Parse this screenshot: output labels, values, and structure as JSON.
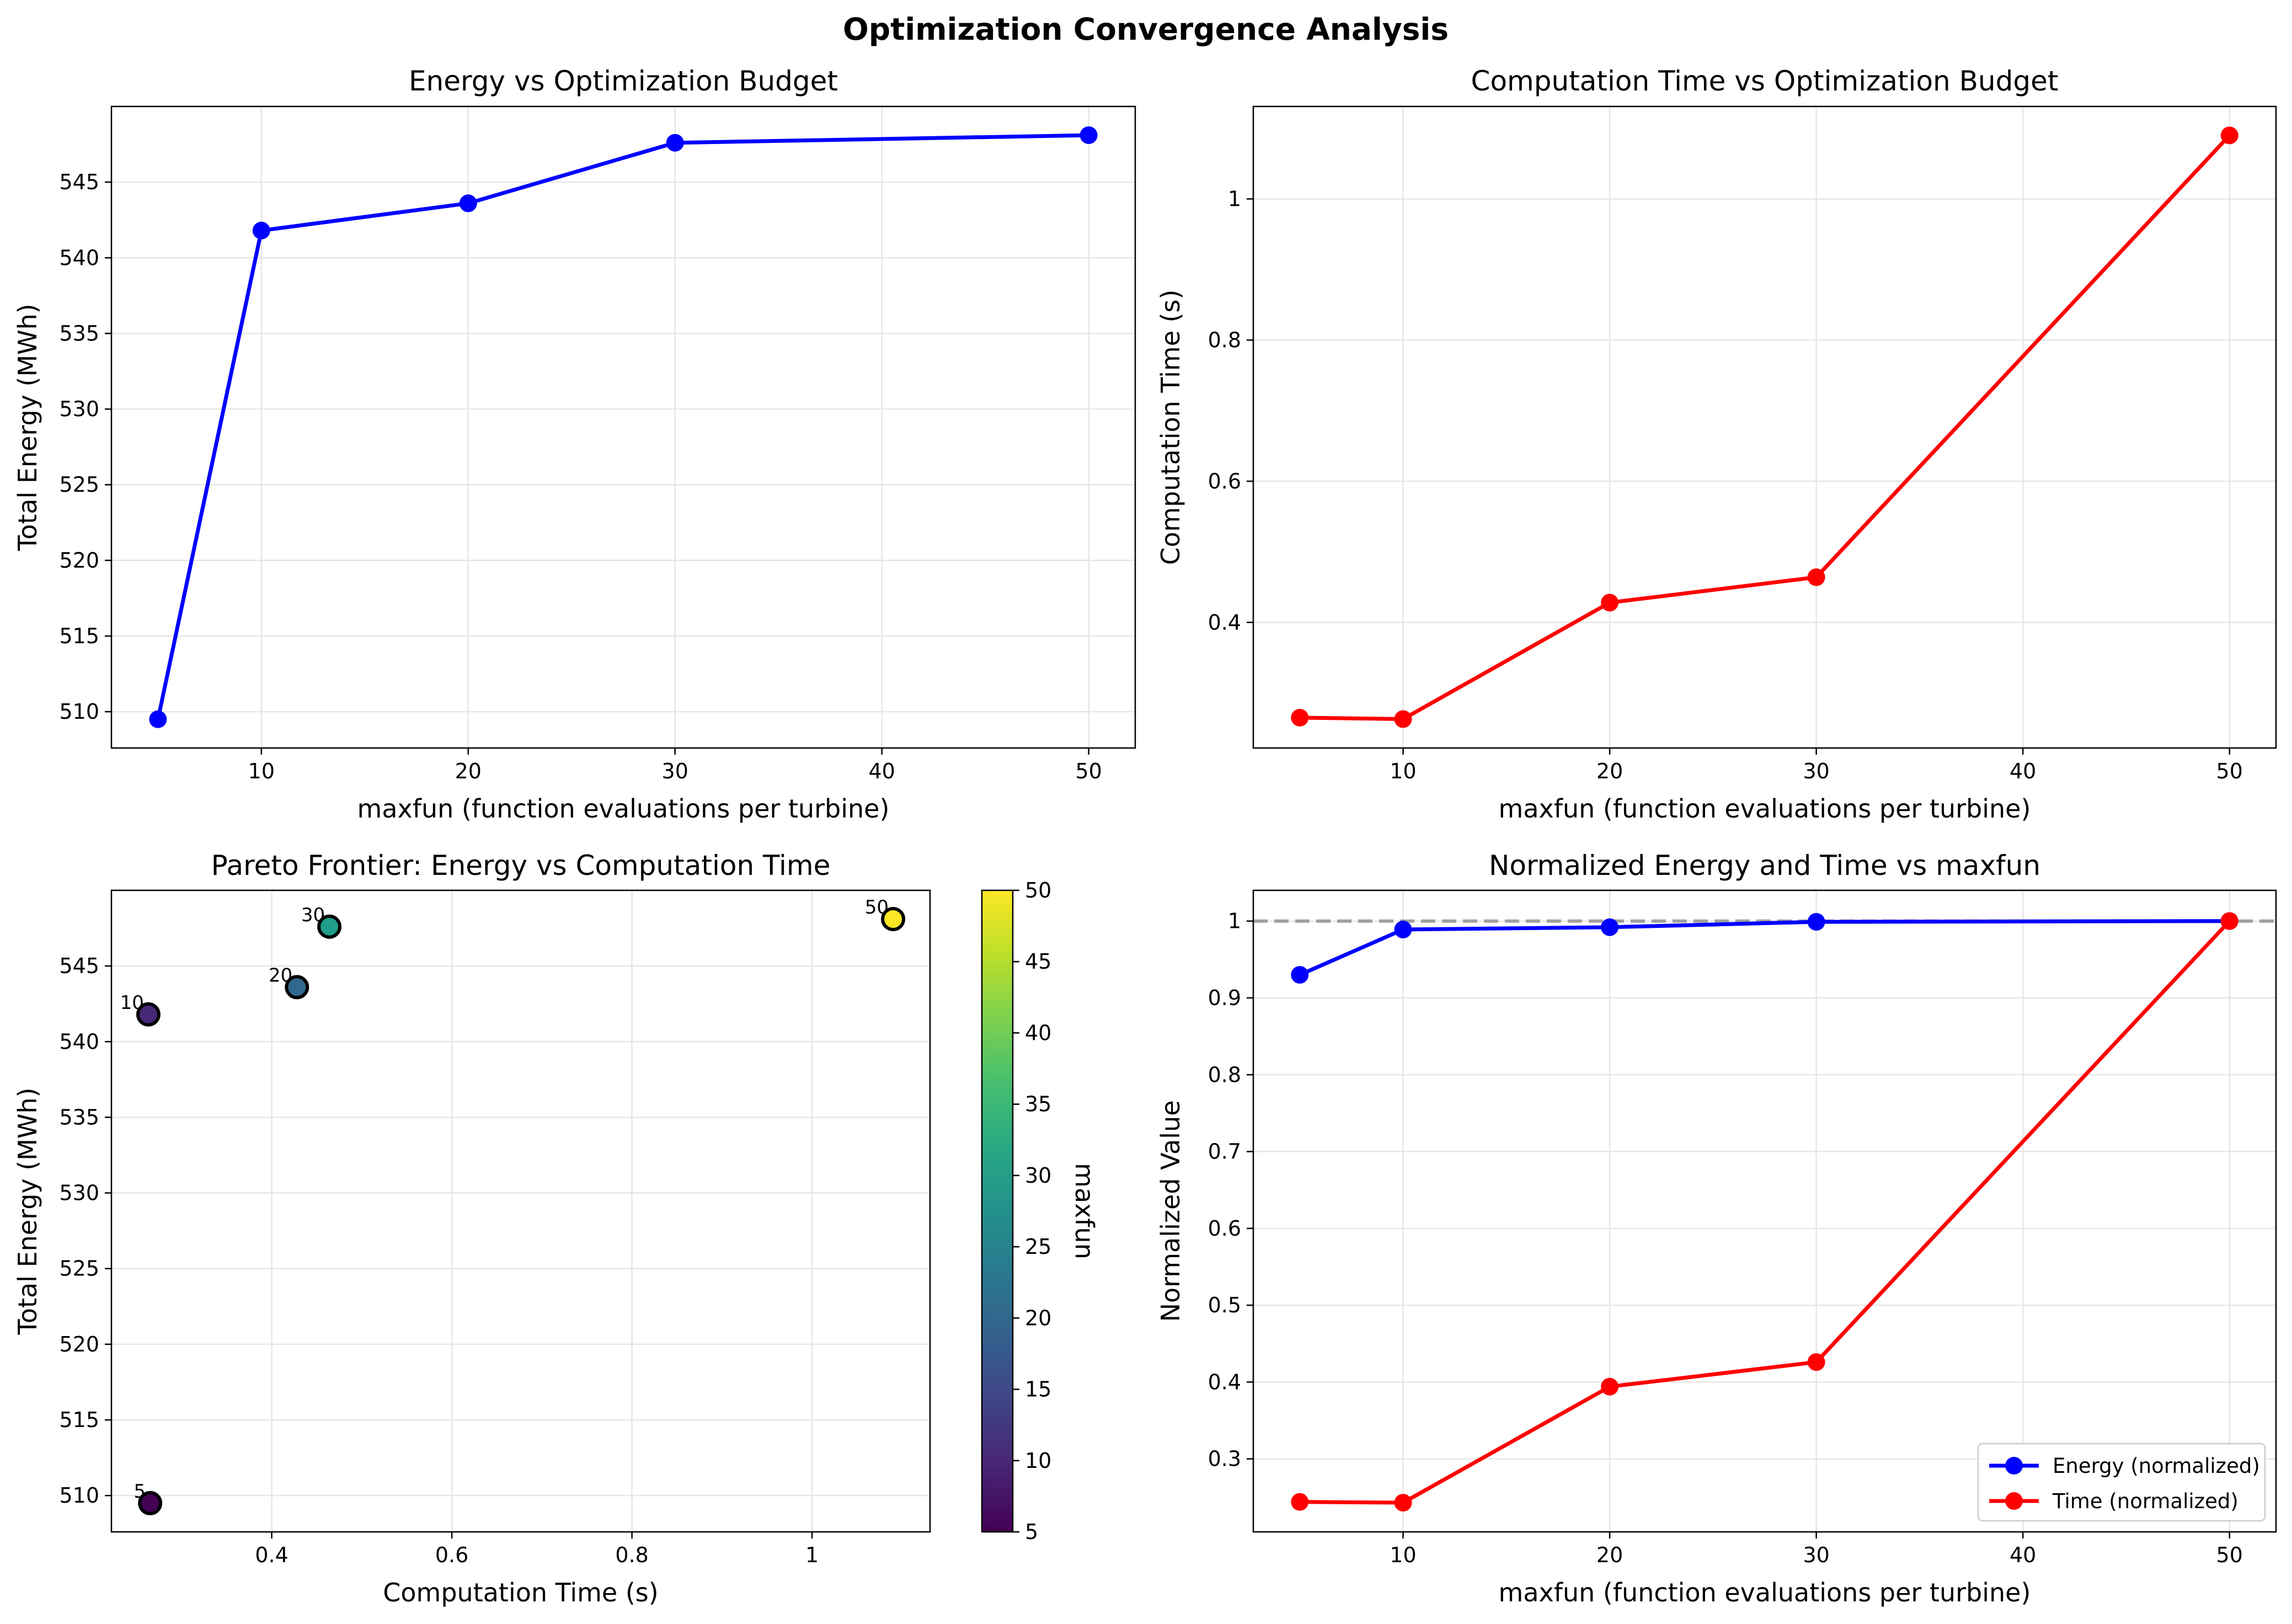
{
  "figure": {
    "title": "Optimization Convergence Analysis",
    "colors": {
      "energy": "#0000ff",
      "time": "#ff0000",
      "grid": "#e6e6e6",
      "refline": "#a0a0a0"
    }
  },
  "chart_data": [
    {
      "type": "line",
      "title": "Energy vs Optimization Budget",
      "xlabel": "maxfun (function evaluations per turbine)",
      "ylabel": "Total Energy (MWh)",
      "x": [
        5,
        10,
        20,
        30,
        50
      ],
      "series": [
        {
          "values": [
            509.5,
            541.8,
            543.6,
            547.6,
            548.1
          ],
          "color": "#0000ff"
        }
      ],
      "xlim": [
        2.75,
        52.25
      ],
      "ylim": [
        507.6,
        550.0
      ],
      "xticks": [
        10,
        20,
        30,
        40,
        50
      ],
      "yticks": [
        510,
        515,
        520,
        525,
        530,
        535,
        540,
        545
      ],
      "grid": true
    },
    {
      "type": "line",
      "title": "Computation Time vs Optimization Budget",
      "xlabel": "maxfun (function evaluations per turbine)",
      "ylabel": "Computation Time (s)",
      "x": [
        5,
        10,
        20,
        30,
        50
      ],
      "series": [
        {
          "values": [
            0.265,
            0.263,
            0.428,
            0.464,
            1.09
          ],
          "color": "#ff0000"
        }
      ],
      "xlim": [
        2.75,
        52.25
      ],
      "ylim": [
        0.222,
        1.131
      ],
      "xticks": [
        10,
        20,
        30,
        40,
        50
      ],
      "yticks": [
        0.4,
        0.6,
        0.8,
        1.0
      ],
      "grid": true
    },
    {
      "type": "scatter",
      "title": "Pareto Frontier: Energy vs Computation Time",
      "xlabel": "Computation Time (s)",
      "ylabel": "Total Energy (MWh)",
      "points": [
        {
          "x": 0.265,
          "y": 509.5,
          "maxfun": 5,
          "label": "5"
        },
        {
          "x": 0.263,
          "y": 541.8,
          "maxfun": 10,
          "label": "10"
        },
        {
          "x": 0.428,
          "y": 543.6,
          "maxfun": 20,
          "label": "20"
        },
        {
          "x": 0.464,
          "y": 547.6,
          "maxfun": 30,
          "label": "30"
        },
        {
          "x": 1.09,
          "y": 548.1,
          "maxfun": 50,
          "label": "50"
        }
      ],
      "xlim": [
        0.222,
        1.131
      ],
      "ylim": [
        507.6,
        550.0
      ],
      "xticks": [
        0.4,
        0.6,
        0.8,
        1.0
      ],
      "yticks": [
        510,
        515,
        520,
        525,
        530,
        535,
        540,
        545
      ],
      "grid": true,
      "colorbar": {
        "label": "maxfun",
        "min": 5,
        "max": 50,
        "ticks": [
          5,
          10,
          15,
          20,
          25,
          30,
          35,
          40,
          45,
          50
        ],
        "colormap": "viridis"
      }
    },
    {
      "type": "line",
      "title": "Normalized Energy and Time vs maxfun",
      "xlabel": "maxfun (function evaluations per turbine)",
      "ylabel": "Normalized Value",
      "x": [
        5,
        10,
        20,
        30,
        50
      ],
      "series": [
        {
          "name": "Energy (normalized)",
          "values": [
            0.93,
            0.989,
            0.992,
            0.999,
            1.0
          ],
          "color": "#0000ff"
        },
        {
          "name": "Time (normalized)",
          "values": [
            0.244,
            0.243,
            0.394,
            0.426,
            1.0
          ],
          "color": "#ff0000"
        }
      ],
      "reference_line": {
        "y": 1.0,
        "style": "dashed",
        "color": "#a0a0a0"
      },
      "xlim": [
        2.75,
        52.25
      ],
      "ylim": [
        0.205,
        1.04
      ],
      "xticks": [
        10,
        20,
        30,
        40,
        50
      ],
      "yticks": [
        0.3,
        0.4,
        0.5,
        0.6,
        0.7,
        0.8,
        0.9,
        1.0
      ],
      "grid": true,
      "legend": "bottom-right"
    }
  ]
}
